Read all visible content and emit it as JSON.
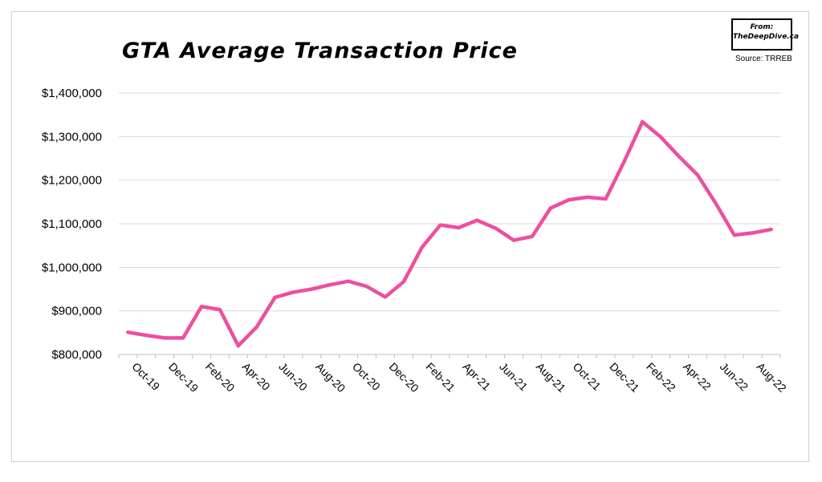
{
  "header": {
    "title": "GTA Average Transaction Price",
    "logo_from": "From:",
    "logo_site": "TheDeepDive.ca",
    "source": "Source: TRREB"
  },
  "colors": {
    "line": "#EE4E9E",
    "grid": "#D9D9D9",
    "axis": "#BFBFBF"
  },
  "chart_data": {
    "type": "line",
    "title": "GTA Average Transaction Price",
    "xlabel": "",
    "ylabel": "",
    "ylim": [
      800000,
      1400000
    ],
    "y_ticks": [
      800000,
      900000,
      1000000,
      1100000,
      1200000,
      1300000,
      1400000
    ],
    "y_tick_labels": [
      "$800,000",
      "$900,000",
      "$1,000,000",
      "$1,100,000",
      "$1,200,000",
      "$1,300,000",
      "$1,400,000"
    ],
    "grid": true,
    "x": [
      "Oct-19",
      "Nov-19",
      "Dec-19",
      "Jan-20",
      "Feb-20",
      "Mar-20",
      "Apr-20",
      "May-20",
      "Jun-20",
      "Jul-20",
      "Aug-20",
      "Sep-20",
      "Oct-20",
      "Nov-20",
      "Dec-20",
      "Jan-21",
      "Feb-21",
      "Mar-21",
      "Apr-21",
      "May-21",
      "Jun-21",
      "Jul-21",
      "Aug-21",
      "Sep-21",
      "Oct-21",
      "Nov-21",
      "Dec-21",
      "Jan-22",
      "Feb-22",
      "Mar-22",
      "Apr-22",
      "May-22",
      "Jun-22",
      "Jul-22",
      "Aug-22",
      "Sep-22"
    ],
    "x_tick_labels": [
      "Oct-19",
      "Dec-19",
      "Feb-20",
      "Apr-20",
      "Jun-20",
      "Aug-20",
      "Oct-20",
      "Dec-20",
      "Feb-21",
      "Apr-21",
      "Jun-21",
      "Aug-21",
      "Oct-21",
      "Dec-21",
      "Feb-22",
      "Apr-22",
      "Jun-22",
      "Aug-22"
    ],
    "series": [
      {
        "values": [
          851000,
          844000,
          838000,
          838000,
          910000,
          903000,
          820000,
          863000,
          931000,
          943000,
          950000,
          960000,
          968000,
          956000,
          932000,
          967000,
          1046000,
          1097000,
          1091000,
          1108000,
          1090000,
          1062000,
          1071000,
          1136000,
          1155000,
          1161000,
          1157000,
          1242000,
          1334000,
          1299000,
          1254000,
          1212000,
          1146000,
          1074000,
          1079000,
          1087000
        ]
      }
    ]
  }
}
